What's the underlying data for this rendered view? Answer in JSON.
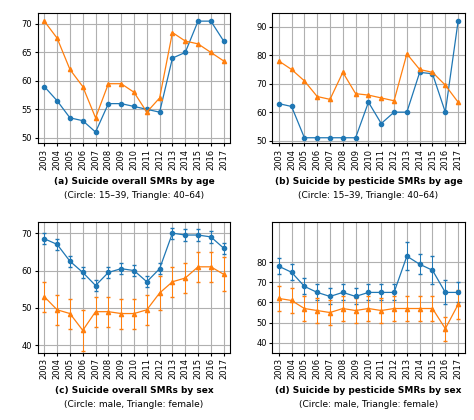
{
  "chart_data": [
    {
      "type": "line",
      "title": "(a) Suicide overall SMRs by age",
      "subtitle": "(Circle: 15–39, Triangle: 40–64)",
      "categories": [
        "2003",
        "2004",
        "2005",
        "2006",
        "2007",
        "2008",
        "2009",
        "2010",
        "2011",
        "2012",
        "2013",
        "2014",
        "2015",
        "2016",
        "2017"
      ],
      "series": [
        {
          "marker": "circle",
          "values": [
            59,
            56.5,
            53.5,
            53,
            51,
            56,
            56,
            55.5,
            55,
            54.5,
            64,
            65,
            70.5,
            70.5,
            67
          ]
        },
        {
          "marker": "triangle",
          "values": [
            70.5,
            67.5,
            62,
            59,
            53.5,
            59.5,
            59.5,
            58,
            54.5,
            57,
            68.5,
            67,
            66.5,
            65,
            63.5
          ]
        }
      ],
      "ylim": [
        49,
        72
      ],
      "yticks": [
        50,
        55,
        60,
        65,
        70
      ],
      "grid": true
    },
    {
      "type": "line",
      "title": "(b) Suicide by pesticide SMRs by age",
      "subtitle": "(Circle: 15–39, Triangle: 40–64)",
      "categories": [
        "2003",
        "2004",
        "2005",
        "2006",
        "2007",
        "2008",
        "2009",
        "2010",
        "2011",
        "2012",
        "2013",
        "2014",
        "2015",
        "2016",
        "2017"
      ],
      "series": [
        {
          "marker": "circle",
          "values": [
            63,
            62,
            51,
            51,
            51,
            51,
            51,
            63.5,
            56,
            60,
            60,
            74,
            73.5,
            60,
            92
          ]
        },
        {
          "marker": "triangle",
          "values": [
            78,
            75,
            71,
            65.5,
            64.5,
            74,
            66.5,
            66,
            65,
            64,
            80.5,
            75,
            74,
            69.5,
            63.5
          ]
        }
      ],
      "ylim": [
        49,
        95
      ],
      "yticks": [
        50,
        60,
        70,
        80,
        90
      ],
      "grid": true
    },
    {
      "type": "line",
      "title": "(c) Suicide overall SMRs by sex",
      "subtitle": "(Circle: male, Triangle: female)",
      "categories": [
        "2003",
        "2004",
        "2005",
        "2006",
        "2007",
        "2008",
        "2009",
        "2010",
        "2011",
        "2012",
        "2013",
        "2014",
        "2015",
        "2016",
        "2017"
      ],
      "series": [
        {
          "marker": "circle",
          "values": [
            68.5,
            67,
            62.5,
            59.5,
            56,
            59.5,
            60.5,
            60,
            57,
            60.5,
            70,
            69.5,
            69.5,
            69,
            66
          ],
          "errors": [
            1.5,
            1.5,
            1.5,
            1.5,
            1.5,
            1.5,
            1.5,
            1.5,
            1.5,
            1.5,
            1.5,
            1.5,
            1.5,
            1.5,
            1.5
          ]
        },
        {
          "marker": "triangle",
          "values": [
            53,
            49.5,
            48.5,
            44,
            49,
            49,
            48.5,
            48.5,
            49.5,
            54,
            57,
            58,
            61,
            61,
            59
          ],
          "errors": [
            4,
            4,
            4,
            5.5,
            4,
            4,
            4,
            4,
            4,
            4.5,
            4,
            4,
            4,
            4,
            4.5
          ]
        }
      ],
      "ylim": [
        38,
        73
      ],
      "yticks": [
        40,
        50,
        60,
        70
      ],
      "grid": true
    },
    {
      "type": "line",
      "title": "(d) Suicide by pesticide SMRs by sex",
      "subtitle": "(Circle: male, Triangle: female)",
      "categories": [
        "2003",
        "2004",
        "2005",
        "2006",
        "2007",
        "2008",
        "2009",
        "2010",
        "2011",
        "2012",
        "2013",
        "2014",
        "2015",
        "2016",
        "2017"
      ],
      "series": [
        {
          "marker": "circle",
          "values": [
            78,
            75,
            68,
            65,
            63,
            65,
            63,
            65,
            65,
            65,
            83,
            79,
            76,
            65,
            65
          ],
          "errors": [
            4,
            4,
            4,
            4,
            4,
            4,
            4,
            4,
            4,
            4,
            7,
            5,
            7,
            6,
            5
          ]
        },
        {
          "marker": "triangle",
          "values": [
            62,
            61,
            57,
            56,
            55,
            57,
            56,
            57,
            56,
            57,
            57,
            57,
            57,
            47,
            59
          ],
          "errors": [
            6,
            6,
            6,
            6,
            6,
            6,
            6,
            6,
            6,
            6,
            6,
            6,
            6,
            6,
            7
          ]
        }
      ],
      "ylim": [
        35,
        100
      ],
      "yticks": [
        40,
        50,
        60,
        70,
        80
      ],
      "grid": true
    }
  ]
}
